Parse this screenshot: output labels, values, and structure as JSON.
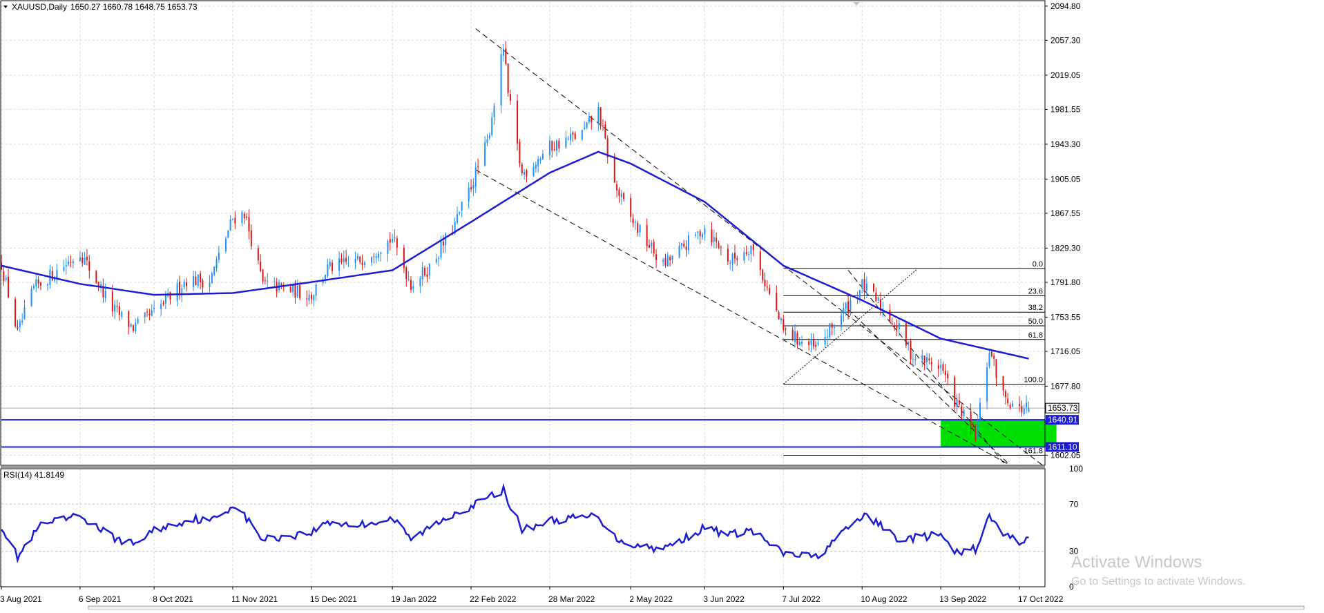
{
  "header": {
    "symbol_label": "XAUUSD,Daily",
    "ohlc": "1650.27 1660.78 1648.75 1653.73"
  },
  "colors": {
    "candle_up": "#1e90ff",
    "candle_down": "#dc1414",
    "moving_average": "#1c1cd6",
    "rsi_line": "#1c1cd6",
    "support_line": "#1c1cd6",
    "support_zone": "#00e000",
    "price_badge": "#1c1cd6",
    "grid": "#d6d6d6",
    "fib_line": "#000000",
    "channel_line": "#000000",
    "current_price_line": "#a8a8a8"
  },
  "watermark": {
    "title": "Activate Windows",
    "subtitle": "Go to Settings to activate Windows."
  },
  "chart_data": [
    {
      "type": "candlestick",
      "title": "XAUUSD,Daily",
      "symbol": "XAUUSD",
      "timeframe": "Daily",
      "last_bar": {
        "open": 1650.27,
        "high": 1660.78,
        "low": 1648.75,
        "close": 1653.73
      },
      "y_ticks": [
        "2094.80",
        "2057.30",
        "2019.05",
        "1981.55",
        "1943.30",
        "1905.05",
        "1867.55",
        "1829.30",
        "1791.80",
        "1753.55",
        "1716.05",
        "1677.80",
        "1602.05"
      ],
      "ylim": [
        1591,
        2100
      ],
      "x_ticks": [
        "3 Aug 2021",
        "6 Sep 2021",
        "8 Oct 2021",
        "11 Nov 2021",
        "15 Dec 2021",
        "19 Jan 2022",
        "22 Feb 2022",
        "28 Mar 2022",
        "2 May 2022",
        "3 Jun 2022",
        "7 Jul 2022",
        "10 Aug 2022",
        "13 Sep 2022",
        "17 Oct 2022"
      ],
      "grid": true,
      "close_anchors": [
        [
          "3 Aug 2021",
          1812
        ],
        [
          "10 Aug 2021",
          1735
        ],
        [
          "17 Aug 2021",
          1785
        ],
        [
          "31 Aug 2021",
          1812
        ],
        [
          "6 Sep 2021",
          1825
        ],
        [
          "20 Sep 2021",
          1763
        ],
        [
          "29 Sep 2021",
          1742
        ],
        [
          "8 Oct 2021",
          1758
        ],
        [
          "22 Oct 2021",
          1795
        ],
        [
          "1 Nov 2021",
          1793
        ],
        [
          "11 Nov 2021",
          1862
        ],
        [
          "16 Nov 2021",
          1868
        ],
        [
          "24 Nov 2021",
          1790
        ],
        [
          "15 Dec 2021",
          1778
        ],
        [
          "22 Dec 2021",
          1807
        ],
        [
          "4 Jan 2022",
          1815
        ],
        [
          "19 Jan 2022",
          1840
        ],
        [
          "27 Jan 2022",
          1790
        ],
        [
          "4 Feb 2022",
          1808
        ],
        [
          "15 Feb 2022",
          1855
        ],
        [
          "22 Feb 2022",
          1898
        ],
        [
          "1 Mar 2022",
          1945
        ],
        [
          "8 Mar 2022",
          2050
        ],
        [
          "10 Mar 2022",
          1998
        ],
        [
          "16 Mar 2022",
          1910
        ],
        [
          "28 Mar 2022",
          1940
        ],
        [
          "11 Apr 2022",
          1955
        ],
        [
          "18 Apr 2022",
          1980
        ],
        [
          "25 Apr 2022",
          1898
        ],
        [
          "2 May 2022",
          1862
        ],
        [
          "16 May 2022",
          1810
        ],
        [
          "3 Jun 2022",
          1852
        ],
        [
          "14 Jun 2022",
          1815
        ],
        [
          "23 Jun 2022",
          1832
        ],
        [
          "7 Jul 2022",
          1738
        ],
        [
          "21 Jul 2022",
          1718
        ],
        [
          "10 Aug 2022",
          1788
        ],
        [
          "16 Aug 2022",
          1772
        ],
        [
          "26 Aug 2022",
          1740
        ],
        [
          "1 Sep 2022",
          1710
        ],
        [
          "13 Sep 2022",
          1700
        ],
        [
          "19 Sep 2022",
          1662
        ],
        [
          "28 Sep 2022",
          1622
        ],
        [
          "4 Oct 2022",
          1718
        ],
        [
          "10 Oct 2022",
          1668
        ],
        [
          "17 Oct 2022",
          1652
        ],
        [
          "21 Oct 2022",
          1653.73
        ]
      ],
      "moving_average_anchors": [
        [
          "3 Aug 2021",
          1810
        ],
        [
          "6 Sep 2021",
          1790
        ],
        [
          "8 Oct 2021",
          1778
        ],
        [
          "11 Nov 2021",
          1780
        ],
        [
          "15 Dec 2021",
          1792
        ],
        [
          "19 Jan 2022",
          1805
        ],
        [
          "22 Feb 2022",
          1858
        ],
        [
          "28 Mar 2022",
          1912
        ],
        [
          "18 Apr 2022",
          1935
        ],
        [
          "2 May 2022",
          1922
        ],
        [
          "3 Jun 2022",
          1880
        ],
        [
          "7 Jul 2022",
          1810
        ],
        [
          "10 Aug 2022",
          1772
        ],
        [
          "13 Sep 2022",
          1730
        ],
        [
          "21 Oct 2022",
          1708
        ]
      ],
      "levels": [
        {
          "label": "1640.91",
          "value": 1640.91
        },
        {
          "label": "1611.10",
          "value": 1611.1
        }
      ],
      "current_price": {
        "label": "1653.73",
        "value": 1653.73
      },
      "support_zone": {
        "from_date": "13 Sep 2022",
        "to_date": "2 Nov 2022",
        "low": 1611.1,
        "high": 1640.91
      },
      "fibonacci": {
        "from_date": "7 Jul 2022",
        "anchor_date": "7 Jul 2022",
        "anchor_low": 1680,
        "top_date": "17 Aug 2022",
        "high": 1807,
        "low": 1680,
        "levels": [
          {
            "label": "0.0",
            "value": 1807
          },
          {
            "label": "23.6",
            "value": 1777
          },
          {
            "label": "38.2",
            "value": 1759
          },
          {
            "label": "50.0",
            "value": 1744
          },
          {
            "label": "61.8",
            "value": 1729
          },
          {
            "label": "100.0",
            "value": 1680
          },
          {
            "label": "161.8",
            "value": 1602
          }
        ]
      },
      "channels": [
        {
          "from": [
            "24 Feb 2022",
            2070
          ],
          "to": [
            "27 Oct 2022",
            1591
          ]
        },
        {
          "from": [
            "24 Feb 2022",
            1915
          ],
          "to": [
            "13 Oct 2022",
            1591
          ]
        },
        {
          "from": [
            "4 Aug 2022",
            1805
          ],
          "to": [
            "11 Oct 2022",
            1591
          ]
        },
        {
          "from": [
            "4 Aug 2022",
            1762
          ],
          "to": [
            "13 Oct 2022",
            1591
          ]
        }
      ]
    },
    {
      "type": "line",
      "title": "RSI(14) 41.8149",
      "indicator": "RSI",
      "period": 14,
      "last_value": 41.8149,
      "ylim": [
        0,
        100
      ],
      "y_ticks": [
        "100",
        "70",
        "30",
        "0"
      ],
      "grid": true,
      "anchors": [
        [
          "3 Aug 2021",
          52
        ],
        [
          "10 Aug 2021",
          25
        ],
        [
          "20 Aug 2021",
          52
        ],
        [
          "6 Sep 2021",
          60
        ],
        [
          "20 Sep 2021",
          42
        ],
        [
          "29 Sep 2021",
          36
        ],
        [
          "8 Oct 2021",
          48
        ],
        [
          "25 Oct 2021",
          58
        ],
        [
          "1 Nov 2021",
          55
        ],
        [
          "12 Nov 2021",
          70
        ],
        [
          "24 Nov 2021",
          40
        ],
        [
          "15 Dec 2021",
          46
        ],
        [
          "22 Dec 2021",
          55
        ],
        [
          "4 Jan 2022",
          52
        ],
        [
          "19 Jan 2022",
          58
        ],
        [
          "27 Jan 2022",
          40
        ],
        [
          "4 Feb 2022",
          50
        ],
        [
          "15 Feb 2022",
          63
        ],
        [
          "22 Feb 2022",
          68
        ],
        [
          "8 Mar 2022",
          82
        ],
        [
          "16 Mar 2022",
          48
        ],
        [
          "28 Mar 2022",
          56
        ],
        [
          "18 Apr 2022",
          60
        ],
        [
          "25 Apr 2022",
          42
        ],
        [
          "2 May 2022",
          36
        ],
        [
          "16 May 2022",
          32
        ],
        [
          "3 Jun 2022",
          50
        ],
        [
          "14 Jun 2022",
          44
        ],
        [
          "23 Jun 2022",
          48
        ],
        [
          "7 Jul 2022",
          28
        ],
        [
          "21 Jul 2022",
          25
        ],
        [
          "10 Aug 2022",
          60
        ],
        [
          "16 Aug 2022",
          55
        ],
        [
          "26 Aug 2022",
          40
        ],
        [
          "13 Sep 2022",
          44
        ],
        [
          "19 Sep 2022",
          28
        ],
        [
          "28 Sep 2022",
          32
        ],
        [
          "4 Oct 2022",
          59
        ],
        [
          "10 Oct 2022",
          45
        ],
        [
          "17 Oct 2022",
          38
        ],
        [
          "21 Oct 2022",
          41.8149
        ]
      ]
    }
  ]
}
